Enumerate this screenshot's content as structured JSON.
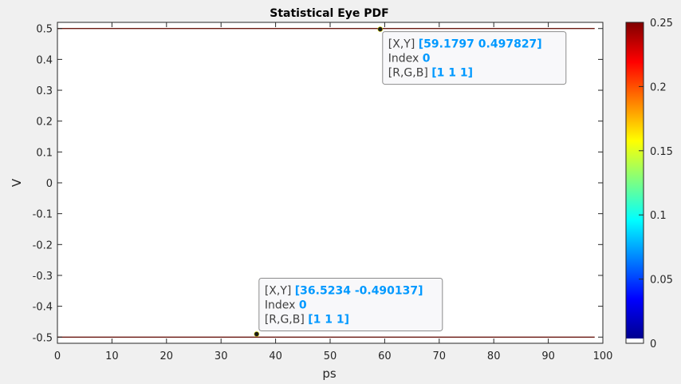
{
  "chart_data": {
    "type": "heatmap",
    "title": "Statistical Eye PDF",
    "xlabel": "ps",
    "ylabel": "V",
    "xlim": [
      0,
      100
    ],
    "ylim": [
      -0.52,
      0.52
    ],
    "xticks": [
      "0",
      "10",
      "20",
      "30",
      "40",
      "50",
      "60",
      "70",
      "80",
      "90",
      "100"
    ],
    "yticks": [
      "0.5",
      "0.4",
      "0.3",
      "0.2",
      "0.1",
      "0",
      "-0.1",
      "-0.2",
      "-0.3",
      "-0.4",
      "-0.5"
    ],
    "xtick_values": [
      0,
      10,
      20,
      30,
      40,
      50,
      60,
      70,
      80,
      90,
      100
    ],
    "ytick_values": [
      0.5,
      0.4,
      0.3,
      0.2,
      0.1,
      0,
      -0.1,
      -0.2,
      -0.3,
      -0.4,
      -0.5
    ],
    "rails": [
      {
        "y": 0.5,
        "x_range": [
          0,
          98.5
        ],
        "color": "#6b1a12"
      },
      {
        "y": -0.5,
        "x_range": [
          0,
          98.5
        ],
        "color": "#6b1a12"
      }
    ],
    "colorbar": {
      "range": [
        0,
        0.25
      ],
      "ticks": [
        "0",
        "0.05",
        "0.1",
        "0.15",
        "0.2",
        "0.25"
      ],
      "tick_values": [
        0,
        0.05,
        0.1,
        0.15,
        0.2,
        0.25
      ],
      "colormap": "jet"
    },
    "datatips": [
      {
        "x": 59.1797,
        "y": 0.497827,
        "line1_label": "[X,Y] ",
        "line1_value": "[59.1797 0.497827]",
        "line2_label": "Index ",
        "line2_value": "0",
        "line3_label": "[R,G,B] ",
        "line3_value": "[1 1 1]",
        "placement": "below-right"
      },
      {
        "x": 36.5234,
        "y": -0.490137,
        "line1_label": "[X,Y] ",
        "line1_value": "[36.5234 -0.490137]",
        "line2_label": "Index ",
        "line2_value": "0",
        "line3_label": "[R,G,B] ",
        "line3_value": "[1 1 1]",
        "placement": "above-right"
      }
    ]
  }
}
